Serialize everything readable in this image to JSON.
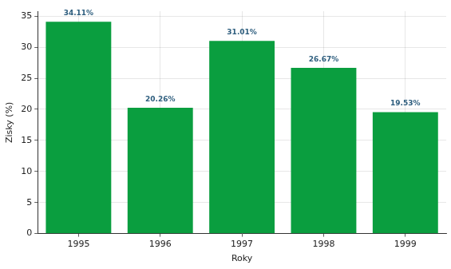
{
  "chart_data": {
    "type": "bar",
    "x_label": "Roky",
    "y_label": "Zisky (%)",
    "categories": [
      "1995",
      "1996",
      "1997",
      "1998",
      "1999"
    ],
    "values": [
      34.11,
      20.26,
      31.01,
      26.67,
      19.53
    ],
    "value_labels": [
      "34.11%",
      "20.26%",
      "31.01%",
      "26.67%",
      "19.53%"
    ],
    "data_labels": true,
    "color": "#0a9e3f",
    "ylim": [
      0,
      35.8
    ],
    "yticks": [
      0,
      5,
      10,
      15,
      20,
      25,
      30,
      35
    ],
    "grid": true
  }
}
